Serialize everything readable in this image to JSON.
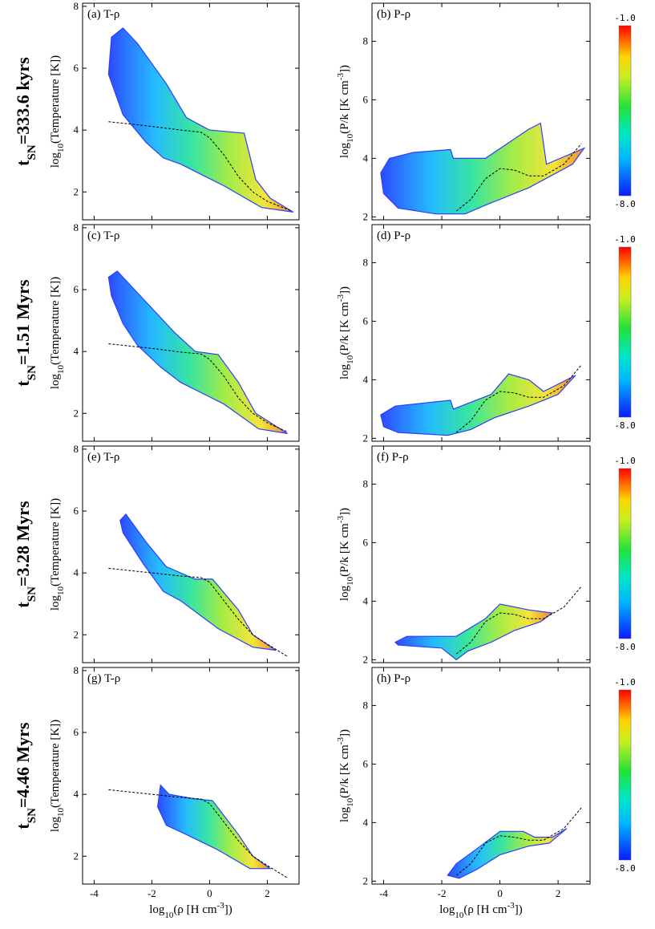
{
  "chart_data": {
    "type": "heatmap",
    "description_of_axes": {
      "x_label": "log10(ρ [H cm⁻³])",
      "x_range": [
        -4.4,
        3.1
      ],
      "x_ticks": [
        -4,
        -2,
        0,
        2
      ]
    },
    "colorbar": {
      "min": -8.0,
      "max": -1.0,
      "min_label": "-8.0",
      "max_label": "-1.0"
    },
    "rows": [
      {
        "time_label": "t_SN=333.6 kyrs",
        "time_value": "333.6 kyrs",
        "T_panel": {
          "label": "(a) T-ρ",
          "ylabel": "log10(Temperature [K])",
          "y_range": [
            1.1,
            8.1
          ],
          "y_ticks": [
            2,
            4,
            6,
            8
          ],
          "equilibrium_curve": [
            [
              -3.5,
              4.27
            ],
            [
              -2,
              4.12
            ],
            [
              -1,
              4.0
            ],
            [
              -0.3,
              3.93
            ],
            [
              0,
              3.75
            ],
            [
              0.5,
              3.2
            ],
            [
              1,
              2.5
            ],
            [
              1.5,
              2.0
            ],
            [
              2,
              1.7
            ],
            [
              2.8,
              1.4
            ]
          ],
          "distribution_outline": [
            [
              -3.4,
              7.0
            ],
            [
              -3.0,
              7.3
            ],
            [
              -2.5,
              6.8
            ],
            [
              -1.5,
              5.5
            ],
            [
              -0.8,
              4.4
            ],
            [
              0,
              4.0
            ],
            [
              1.2,
              3.9
            ],
            [
              1.6,
              2.4
            ],
            [
              2.1,
              1.8
            ],
            [
              2.9,
              1.35
            ],
            [
              1.8,
              1.5
            ],
            [
              0.5,
              2.2
            ],
            [
              -1,
              2.9
            ],
            [
              -1.6,
              3.1
            ],
            [
              -2.2,
              3.6
            ],
            [
              -3.0,
              4.5
            ],
            [
              -3.5,
              5.8
            ]
          ]
        },
        "P_panel": {
          "label": "(b) P-ρ",
          "ylabel": "log10(P/k [K cm⁻³])",
          "y_range": [
            1.9,
            9.3
          ],
          "y_ticks": [
            2,
            4,
            6,
            8
          ],
          "equilibrium_curve": [
            [
              -1.5,
              2.2
            ],
            [
              -1,
              2.6
            ],
            [
              -0.5,
              3.3
            ],
            [
              0,
              3.65
            ],
            [
              0.5,
              3.6
            ],
            [
              1,
              3.4
            ],
            [
              1.5,
              3.4
            ],
            [
              2.2,
              3.8
            ],
            [
              2.8,
              4.5
            ]
          ],
          "distribution_outline": [
            [
              -4.1,
              3.5
            ],
            [
              -3.8,
              4.0
            ],
            [
              -3,
              4.2
            ],
            [
              -1.7,
              4.3
            ],
            [
              -1.6,
              4.0
            ],
            [
              -0.5,
              4.0
            ],
            [
              1.0,
              5.0
            ],
            [
              1.4,
              5.2
            ],
            [
              1.6,
              3.8
            ],
            [
              2.9,
              4.35
            ],
            [
              2.5,
              3.8
            ],
            [
              1.0,
              3.0
            ],
            [
              -0.5,
              2.4
            ],
            [
              -1.2,
              2.1
            ],
            [
              -2.2,
              2.1
            ],
            [
              -3.5,
              2.3
            ],
            [
              -4.0,
              2.8
            ]
          ]
        }
      },
      {
        "time_label": "t_SN=1.51 Myrs",
        "time_value": "1.51 Myrs",
        "T_panel": {
          "label": "(c) T-ρ",
          "ylabel": "log10(Temperature [K])",
          "y_range": [
            1.1,
            8.1
          ],
          "y_ticks": [
            2,
            4,
            6,
            8
          ],
          "equilibrium_curve": [
            [
              -3.5,
              4.25
            ],
            [
              -2,
              4.1
            ],
            [
              -1,
              3.98
            ],
            [
              -0.3,
              3.92
            ],
            [
              0,
              3.75
            ],
            [
              0.5,
              3.2
            ],
            [
              1,
              2.5
            ],
            [
              1.5,
              2.0
            ],
            [
              2,
              1.7
            ],
            [
              2.7,
              1.4
            ]
          ],
          "distribution_outline": [
            [
              -3.5,
              6.4
            ],
            [
              -3.2,
              6.6
            ],
            [
              -2.5,
              5.9
            ],
            [
              -1.2,
              4.6
            ],
            [
              -0.5,
              4.0
            ],
            [
              0.3,
              3.9
            ],
            [
              1.0,
              3.0
            ],
            [
              1.6,
              2.0
            ],
            [
              2.7,
              1.35
            ],
            [
              1.7,
              1.5
            ],
            [
              0.5,
              2.3
            ],
            [
              -1.0,
              3.0
            ],
            [
              -1.7,
              3.5
            ],
            [
              -2.5,
              4.2
            ],
            [
              -3.0,
              4.9
            ],
            [
              -3.4,
              5.8
            ]
          ]
        },
        "P_panel": {
          "label": "(d) P-ρ",
          "ylabel": "log10(P/k [K cm⁻³])",
          "y_range": [
            1.9,
            9.3
          ],
          "y_ticks": [
            2,
            4,
            6,
            8
          ],
          "equilibrium_curve": [
            [
              -1.5,
              2.2
            ],
            [
              -1,
              2.6
            ],
            [
              -0.5,
              3.3
            ],
            [
              0,
              3.6
            ],
            [
              0.5,
              3.55
            ],
            [
              1,
              3.4
            ],
            [
              1.5,
              3.4
            ],
            [
              2.2,
              3.8
            ],
            [
              2.8,
              4.5
            ]
          ],
          "distribution_outline": [
            [
              -4.1,
              2.8
            ],
            [
              -3.6,
              3.1
            ],
            [
              -1.7,
              3.3
            ],
            [
              -1.6,
              3.0
            ],
            [
              -0.3,
              3.5
            ],
            [
              0.3,
              4.2
            ],
            [
              1.0,
              4.0
            ],
            [
              1.5,
              3.6
            ],
            [
              2.6,
              4.15
            ],
            [
              2.0,
              3.5
            ],
            [
              1.0,
              3.1
            ],
            [
              -0.2,
              2.7
            ],
            [
              -1.0,
              2.3
            ],
            [
              -1.8,
              2.1
            ],
            [
              -3.5,
              2.2
            ],
            [
              -4.0,
              2.4
            ]
          ]
        }
      },
      {
        "time_label": "t_SN=3.28 Myrs",
        "time_value": "3.28 Myrs",
        "T_panel": {
          "label": "(e) T-ρ",
          "ylabel": "log10(Temperature [K])",
          "y_range": [
            1.1,
            8.1
          ],
          "y_ticks": [
            2,
            4,
            6,
            8
          ],
          "equilibrium_curve": [
            [
              -3.5,
              4.15
            ],
            [
              -2,
              4.0
            ],
            [
              -1,
              3.9
            ],
            [
              -0.3,
              3.85
            ],
            [
              0,
              3.7
            ],
            [
              0.5,
              3.1
            ],
            [
              1,
              2.5
            ],
            [
              1.5,
              2.0
            ],
            [
              2,
              1.7
            ],
            [
              2.7,
              1.3
            ]
          ],
          "distribution_outline": [
            [
              -3.1,
              5.7
            ],
            [
              -2.9,
              5.9
            ],
            [
              -2.2,
              5.0
            ],
            [
              -1.5,
              4.2
            ],
            [
              -0.5,
              3.8
            ],
            [
              0.1,
              3.8
            ],
            [
              1.0,
              2.8
            ],
            [
              1.5,
              2.0
            ],
            [
              2.3,
              1.5
            ],
            [
              1.5,
              1.6
            ],
            [
              0.3,
              2.2
            ],
            [
              -1.0,
              3.1
            ],
            [
              -1.6,
              3.4
            ],
            [
              -2.3,
              4.3
            ],
            [
              -3.0,
              5.3
            ]
          ]
        },
        "P_panel": {
          "label": "(f) P-ρ",
          "ylabel": "log10(P/k [K cm⁻³])",
          "y_range": [
            1.9,
            9.3
          ],
          "y_ticks": [
            2,
            4,
            6,
            8
          ],
          "equilibrium_curve": [
            [
              -1.5,
              2.2
            ],
            [
              -1,
              2.6
            ],
            [
              -0.5,
              3.3
            ],
            [
              0,
              3.6
            ],
            [
              0.5,
              3.55
            ],
            [
              1,
              3.4
            ],
            [
              1.5,
              3.4
            ],
            [
              2.2,
              3.8
            ],
            [
              2.8,
              4.5
            ]
          ],
          "distribution_outline": [
            [
              -3.6,
              2.6
            ],
            [
              -3.2,
              2.8
            ],
            [
              -1.7,
              2.8
            ],
            [
              -1.5,
              2.8
            ],
            [
              -0.5,
              3.4
            ],
            [
              0,
              3.9
            ],
            [
              1.0,
              3.7
            ],
            [
              1.8,
              3.6
            ],
            [
              1.4,
              3.3
            ],
            [
              0.5,
              3.0
            ],
            [
              -0.3,
              2.6
            ],
            [
              -1.1,
              2.3
            ],
            [
              -1.5,
              2.0
            ],
            [
              -2.0,
              2.4
            ],
            [
              -3.5,
              2.5
            ]
          ]
        }
      },
      {
        "time_label": "t_SN=4.46 Myrs",
        "time_value": "4.46 Myrs",
        "T_panel": {
          "label": "(g) T-ρ",
          "ylabel": "log10(Temperature [K])",
          "y_range": [
            1.1,
            8.1
          ],
          "y_ticks": [
            2,
            4,
            6,
            8
          ],
          "equilibrium_curve": [
            [
              -3.5,
              4.15
            ],
            [
              -2,
              4.0
            ],
            [
              -1,
              3.9
            ],
            [
              -0.3,
              3.85
            ],
            [
              0,
              3.7
            ],
            [
              0.5,
              3.1
            ],
            [
              1,
              2.5
            ],
            [
              1.5,
              2.0
            ],
            [
              2,
              1.7
            ],
            [
              2.7,
              1.3
            ]
          ],
          "distribution_outline": [
            [
              -1.7,
              4.3
            ],
            [
              -1.4,
              4.0
            ],
            [
              -0.5,
              3.85
            ],
            [
              0.1,
              3.8
            ],
            [
              1.0,
              2.7
            ],
            [
              1.5,
              2.0
            ],
            [
              2.1,
              1.6
            ],
            [
              1.4,
              1.6
            ],
            [
              0.3,
              2.2
            ],
            [
              -0.8,
              2.7
            ],
            [
              -1.5,
              3.0
            ],
            [
              -1.8,
              3.6
            ]
          ]
        },
        "P_panel": {
          "label": "(h) P-ρ",
          "ylabel": "log10(P/k [K cm⁻³])",
          "y_range": [
            1.9,
            9.3
          ],
          "y_ticks": [
            2,
            4,
            6,
            8
          ],
          "equilibrium_curve": [
            [
              -1.5,
              2.2
            ],
            [
              -1,
              2.6
            ],
            [
              -0.5,
              3.3
            ],
            [
              0,
              3.55
            ],
            [
              0.5,
              3.5
            ],
            [
              1,
              3.4
            ],
            [
              1.5,
              3.4
            ],
            [
              2.2,
              3.8
            ],
            [
              2.8,
              4.5
            ]
          ],
          "distribution_outline": [
            [
              -1.8,
              2.2
            ],
            [
              -1.5,
              2.6
            ],
            [
              -0.8,
              3.1
            ],
            [
              0,
              3.7
            ],
            [
              0.8,
              3.7
            ],
            [
              1.2,
              3.5
            ],
            [
              1.8,
              3.5
            ],
            [
              2.3,
              3.8
            ],
            [
              1.7,
              3.3
            ],
            [
              1.0,
              3.2
            ],
            [
              0,
              2.9
            ],
            [
              -0.8,
              2.4
            ],
            [
              -1.4,
              2.1
            ]
          ]
        }
      }
    ]
  }
}
